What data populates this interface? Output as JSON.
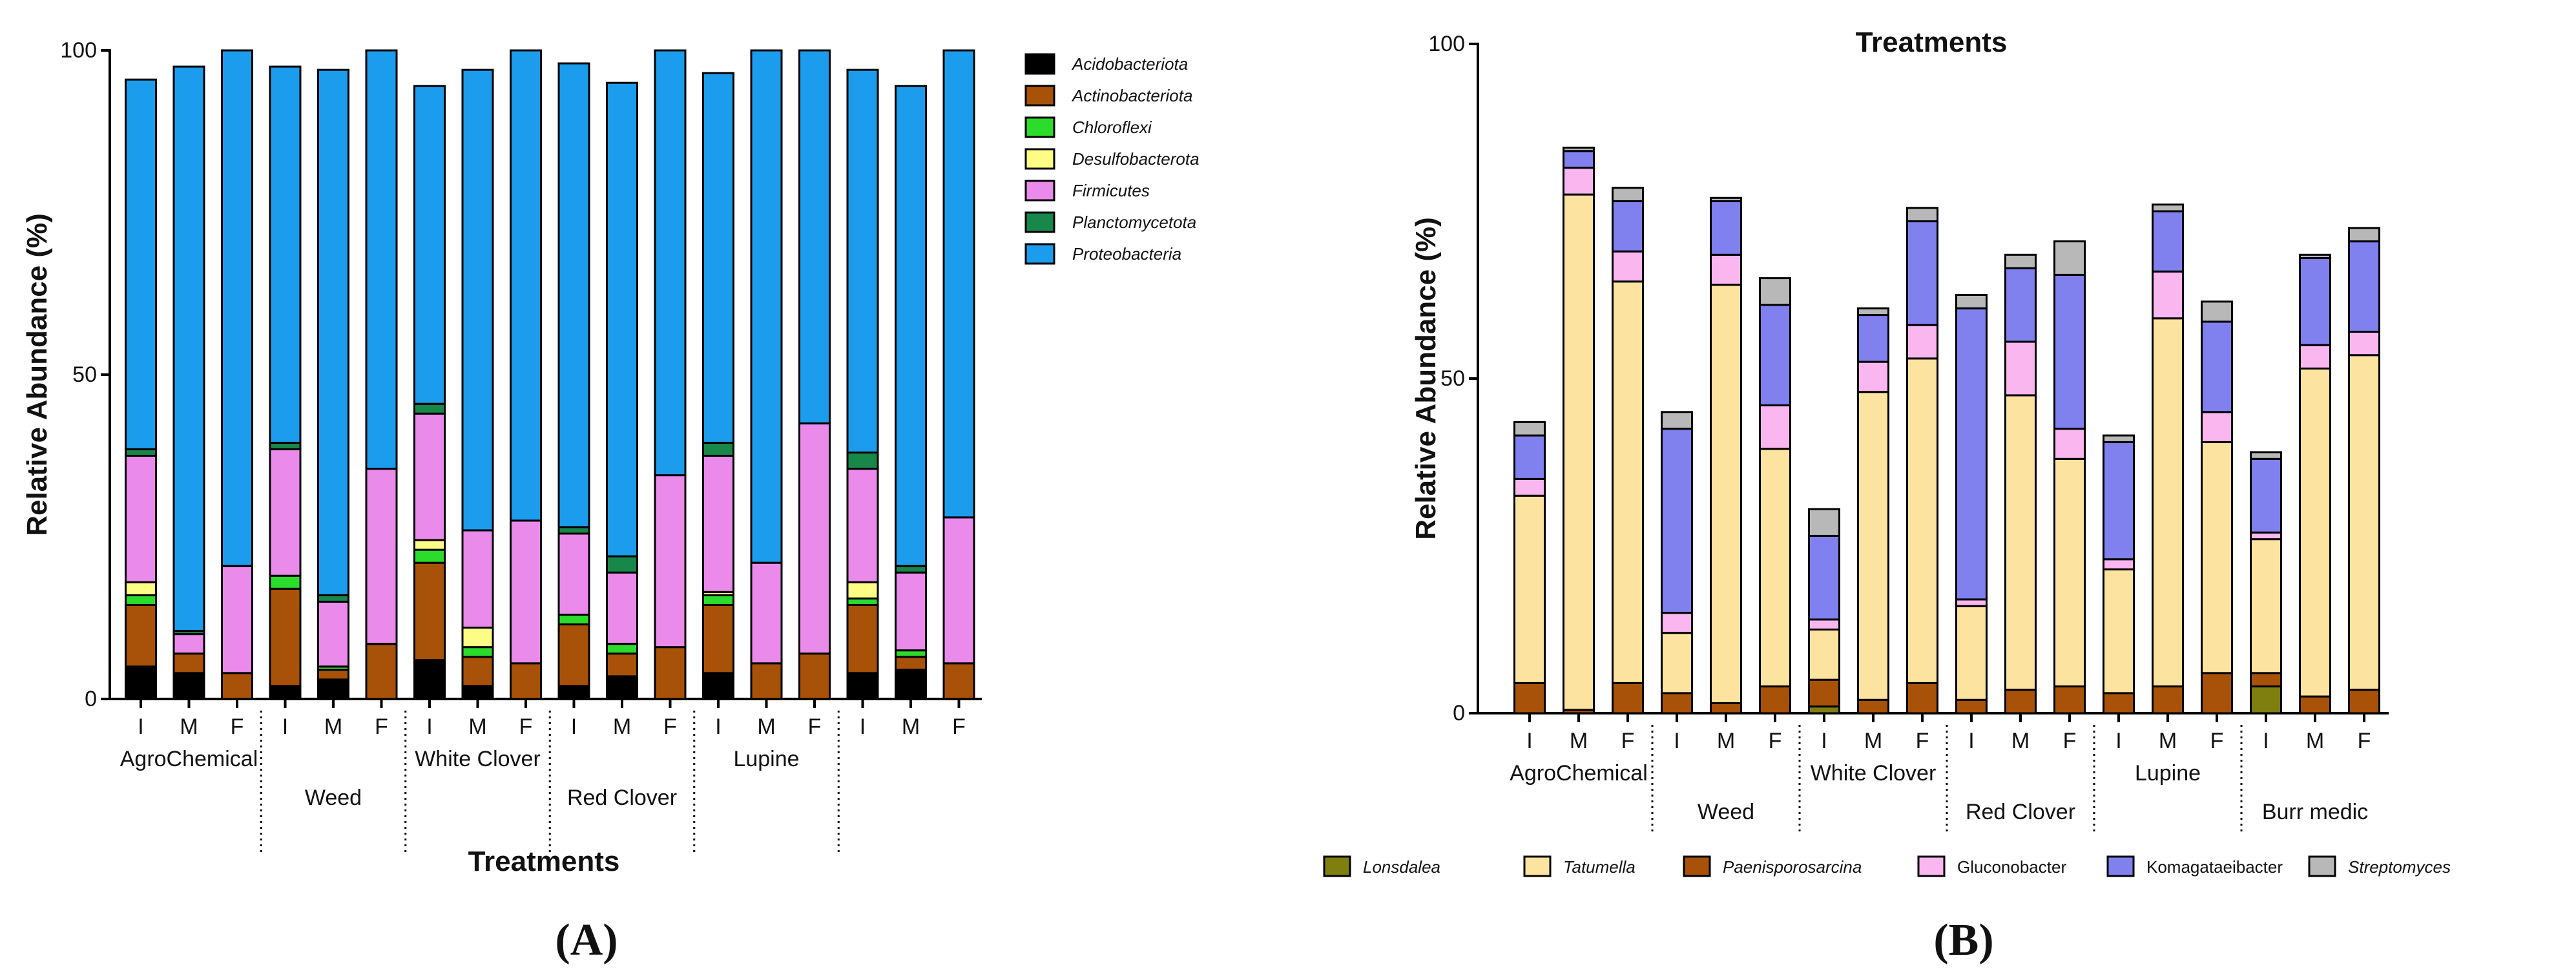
{
  "colors": {
    "Acidobacteriota": "#000000",
    "Actinobacteriota": "#a75208",
    "Chloroflexi": "#2cdc2c",
    "Desulfobacterota": "#fdfd86",
    "Firmicutes": "#ea8aea",
    "Planctomycetota": "#17874a",
    "Proteobacteria": "#1c9cec",
    "Lonsdalea": "#7f7f10",
    "Tatumella": "#fde3a0",
    "Paenisporosarcina": "#a75208",
    "Gluconobacter": "#f9b6ef",
    "Komagataeibacter": "#8080ef",
    "Streptomyces": "#b8b8b8"
  },
  "chart_data": [
    {
      "panel": "(A)",
      "type": "bar",
      "stacked": true,
      "title": "",
      "xlabel": "Treatments",
      "ylabel": "Relative Abundance (%)",
      "ylim": [
        0,
        100
      ],
      "yticks": [
        0,
        50,
        100
      ],
      "groups": [
        "AgroChemical",
        "Weed",
        "White Clover",
        "Red Clover",
        "Lupine",
        ""
      ],
      "categories": [
        "I",
        "M",
        "F",
        "I",
        "M",
        "F",
        "I",
        "M",
        "F",
        "I",
        "M",
        "F",
        "I",
        "M",
        "F",
        "I",
        "M",
        "F"
      ],
      "legend_position": "right",
      "series": [
        {
          "name": "Acidobacteriota",
          "italic": true,
          "values": [
            5,
            4,
            0,
            2,
            3,
            0,
            6,
            2,
            0,
            2,
            3.5,
            0,
            4,
            0,
            0,
            4,
            4.5,
            0
          ]
        },
        {
          "name": "Actinobacteriota",
          "italic": true,
          "values": [
            9.5,
            3,
            4,
            15,
            1.5,
            8.5,
            15,
            4.5,
            5.5,
            9.5,
            3.5,
            8,
            10.5,
            5.5,
            7,
            10.5,
            2,
            5.5
          ]
        },
        {
          "name": "Chloroflexi",
          "italic": true,
          "values": [
            1.5,
            0,
            0,
            2,
            0.5,
            0,
            2,
            1.5,
            0,
            1.5,
            1.5,
            0,
            1.5,
            0,
            0,
            1,
            1,
            0
          ]
        },
        {
          "name": "Desulfobacterota",
          "italic": true,
          "values": [
            2,
            0,
            0,
            0,
            0,
            0,
            1.5,
            3,
            0,
            0,
            0,
            0,
            0.5,
            0,
            0,
            2.5,
            0,
            0
          ]
        },
        {
          "name": "Firmicutes",
          "italic": true,
          "values": [
            19.5,
            3,
            16.5,
            19.5,
            10,
            27,
            19.5,
            15,
            22,
            12.5,
            11,
            26.5,
            21,
            15.5,
            35.5,
            17.5,
            12,
            22.5
          ]
        },
        {
          "name": "Planctomycetota",
          "italic": true,
          "values": [
            1,
            0.5,
            0,
            1,
            1,
            0,
            1.5,
            0,
            0,
            1,
            2.5,
            0,
            2,
            0,
            0,
            2.5,
            1,
            0
          ]
        },
        {
          "name": "Proteobacteria",
          "italic": true,
          "values": [
            57,
            87,
            79.5,
            58,
            81,
            64.5,
            49,
            71,
            72.5,
            71.5,
            73,
            65.5,
            57,
            79,
            57.5,
            59,
            74,
            72
          ]
        }
      ]
    },
    {
      "panel": "(B)",
      "type": "bar",
      "stacked": true,
      "title": "Treatments",
      "xlabel": "",
      "ylabel": "Relative Abundance (%)",
      "ylim": [
        0,
        100
      ],
      "yticks": [
        0,
        50,
        100
      ],
      "groups": [
        "AgroChemical",
        "Weed",
        "White Clover",
        "Red Clover",
        "Lupine",
        "Burr medic"
      ],
      "categories": [
        "I",
        "M",
        "F",
        "I",
        "M",
        "F",
        "I",
        "M",
        "F",
        "I",
        "M",
        "F",
        "I",
        "M",
        "F",
        "I",
        "M",
        "F"
      ],
      "legend_position": "bottom",
      "series": [
        {
          "name": "Lonsdalea",
          "italic": true,
          "values": [
            0,
            0,
            0,
            0,
            0,
            0,
            1,
            0,
            0,
            0,
            0,
            0,
            0,
            0,
            0,
            4,
            0,
            0
          ]
        },
        {
          "name": "Paenisporosarcina",
          "italic": true,
          "values": [
            4.5,
            0.5,
            4.5,
            3,
            1.5,
            4,
            4,
            2,
            4.5,
            2,
            3.5,
            4,
            3,
            4,
            6,
            2,
            2.5,
            3.5
          ]
        },
        {
          "name": "Tatumella",
          "italic": true,
          "values": [
            28,
            77,
            60,
            9,
            62.5,
            35.5,
            7.5,
            46,
            48.5,
            14,
            44,
            34,
            18.5,
            55,
            34.5,
            20,
            49,
            50
          ]
        },
        {
          "name": "Gluconobacter",
          "italic": false,
          "values": [
            2.5,
            4,
            4.5,
            3,
            4.5,
            6.5,
            1.5,
            4.5,
            5,
            1,
            8,
            4.5,
            1.5,
            7,
            4.5,
            1,
            3.5,
            3.5
          ]
        },
        {
          "name": "Komagataeibacter",
          "italic": false,
          "values": [
            6.5,
            2.5,
            7.5,
            27.5,
            8,
            15,
            12.5,
            7,
            15.5,
            43.5,
            11,
            23,
            17.5,
            9,
            13.5,
            11,
            13,
            13.5
          ]
        },
        {
          "name": "Streptomyces",
          "italic": true,
          "values": [
            2,
            0.5,
            2,
            2.5,
            0.5,
            4,
            4,
            1,
            2,
            2,
            2,
            5,
            1,
            1,
            3,
            1,
            0.5,
            2
          ]
        }
      ],
      "legend_order": [
        "Lonsdalea",
        "Tatumella",
        "Paenisporosarcina",
        "Gluconobacter",
        "Komagataeibacter",
        "Streptomyces"
      ]
    }
  ]
}
